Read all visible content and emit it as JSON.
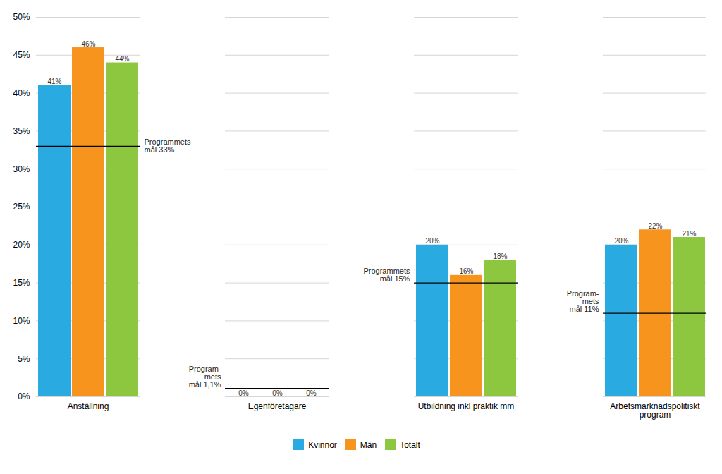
{
  "chart_data": {
    "type": "bar",
    "categories": [
      "Anställning",
      "Egenföretagare",
      "Utbildning inkl praktik mm",
      "Arbetsmarknadspolitiskt\nprogram"
    ],
    "series": [
      {
        "name": "Kvinnor",
        "color": "#29ABE2",
        "values": [
          41,
          0,
          20,
          20
        ],
        "value_labels": [
          "41%",
          "0%",
          "20%",
          "20%"
        ]
      },
      {
        "name": "Män",
        "color": "#F7941D",
        "values": [
          46,
          0,
          16,
          22
        ],
        "value_labels": [
          "46%",
          "0%",
          "16%",
          "22%"
        ]
      },
      {
        "name": "Totalt",
        "color": "#8DC63F",
        "values": [
          44,
          0,
          18,
          21
        ],
        "value_labels": [
          "44%",
          "0%",
          "18%",
          "21%"
        ]
      }
    ],
    "ylim": [
      0,
      50
    ],
    "yticks": [
      {
        "value": 0,
        "label": "0%"
      },
      {
        "value": 5,
        "label": "5%"
      },
      {
        "value": 10,
        "label": "10%"
      },
      {
        "value": 15,
        "label": "15%"
      },
      {
        "value": 20,
        "label": "20%"
      },
      {
        "value": 25,
        "label": "25%"
      },
      {
        "value": 30,
        "label": "30%"
      },
      {
        "value": 35,
        "label": "35%"
      },
      {
        "value": 40,
        "label": "40%"
      },
      {
        "value": 45,
        "label": "45%"
      },
      {
        "value": 50,
        "label": "50%"
      }
    ],
    "grid": true,
    "legend": "bottom",
    "data_labels": true,
    "annotations": [
      {
        "text": "Programmets\nmål 33%",
        "x": "Anställning",
        "y": 33
      },
      {
        "text": "Program-\nmets\nmål 1,1%",
        "x": "Egenföretagare",
        "y": 1.1
      },
      {
        "text": "Programmets\nmål 15%",
        "x": "Utbildning inkl praktik mm",
        "y": 15
      },
      {
        "text": "Program-\nmets\nmål 11%",
        "x": "Arbetsmarknadspolitiskt\nprogram",
        "y": 11
      }
    ]
  }
}
